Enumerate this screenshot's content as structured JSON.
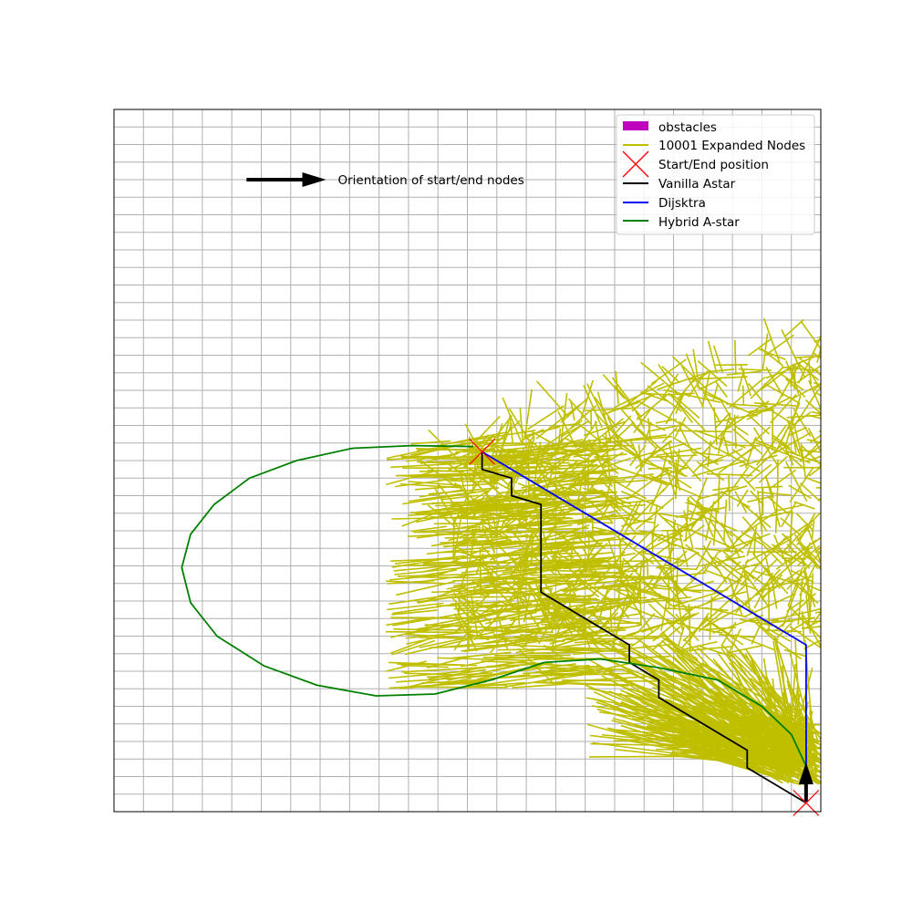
{
  "chart_data": {
    "type": "line",
    "title": "",
    "xlabel": "",
    "ylabel": "",
    "xlim": [
      0,
      24
    ],
    "ylim": [
      0,
      40
    ],
    "grid": true,
    "legend_placement": "top-right",
    "annotation": {
      "text": "Orientation of start/end nodes",
      "arrow_from": [
        4.5,
        36.0
      ],
      "arrow_to": [
        7.2,
        36.0
      ]
    },
    "legend": [
      {
        "label": "obstacles",
        "kind": "patch",
        "color": "#bf00bf"
      },
      {
        "label": "10001 Expanded Nodes",
        "kind": "line",
        "color": "#bfbf00"
      },
      {
        "label": "Start/End position",
        "kind": "marker",
        "color": "#ff0000"
      },
      {
        "label": "Vanilla Astar",
        "kind": "line",
        "color": "#000000"
      },
      {
        "label": "Dijsktra",
        "kind": "line",
        "color": "#0000ff"
      },
      {
        "label": "Hybrid A-star",
        "kind": "line",
        "color": "#008000"
      }
    ],
    "start_end_positions": [
      [
        12.5,
        20.5
      ],
      [
        23.5,
        0.5
      ]
    ],
    "orientation_arrow": {
      "from": [
        23.5,
        0.6
      ],
      "to": [
        23.5,
        2.6
      ]
    },
    "expanded_nodes_region": {
      "count": 10001,
      "x_range": [
        9.0,
        24.0
      ],
      "y_range": [
        2.5,
        28.0
      ]
    },
    "series": [
      {
        "name": "Vanilla Astar",
        "color": "#000000",
        "points": [
          [
            12.5,
            20.5
          ],
          [
            12.5,
            19.5
          ],
          [
            13.5,
            19.0
          ],
          [
            13.5,
            18.0
          ],
          [
            14.5,
            17.5
          ],
          [
            14.5,
            12.5
          ],
          [
            17.5,
            9.5
          ],
          [
            17.5,
            8.5
          ],
          [
            18.5,
            7.5
          ],
          [
            18.5,
            6.5
          ],
          [
            21.5,
            3.5
          ],
          [
            21.5,
            2.5
          ],
          [
            23.5,
            0.5
          ]
        ]
      },
      {
        "name": "Dijsktra",
        "color": "#0000ff",
        "points": [
          [
            12.5,
            20.5
          ],
          [
            23.5,
            9.5
          ],
          [
            23.5,
            0.5
          ]
        ]
      },
      {
        "name": "Hybrid A-star",
        "color": "#008000",
        "points": [
          [
            12.2,
            20.8
          ],
          [
            10.1,
            20.85
          ],
          [
            8.1,
            20.7
          ],
          [
            6.2,
            20.0
          ],
          [
            4.6,
            19.0
          ],
          [
            3.4,
            17.5
          ],
          [
            2.6,
            15.8
          ],
          [
            2.3,
            13.9
          ],
          [
            2.6,
            11.9
          ],
          [
            3.5,
            10.0
          ],
          [
            5.1,
            8.3
          ],
          [
            6.9,
            7.2
          ],
          [
            8.9,
            6.6
          ],
          [
            10.9,
            6.7
          ],
          [
            12.8,
            7.5
          ],
          [
            14.6,
            8.5
          ],
          [
            16.5,
            8.7
          ],
          [
            18.5,
            8.2
          ],
          [
            20.5,
            7.5
          ],
          [
            22.0,
            6.0
          ],
          [
            23.0,
            4.4
          ],
          [
            23.5,
            2.6
          ]
        ]
      }
    ]
  }
}
